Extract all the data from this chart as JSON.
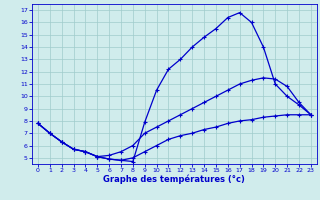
{
  "xlabel": "Graphe des températures (°c)",
  "xlim": [
    -0.5,
    23.5
  ],
  "ylim": [
    4.5,
    17.5
  ],
  "xticks": [
    0,
    1,
    2,
    3,
    4,
    5,
    6,
    7,
    8,
    9,
    10,
    11,
    12,
    13,
    14,
    15,
    16,
    17,
    18,
    19,
    20,
    21,
    22,
    23
  ],
  "yticks": [
    5,
    6,
    7,
    8,
    9,
    10,
    11,
    12,
    13,
    14,
    15,
    16,
    17
  ],
  "line_color": "#0000cc",
  "bg_color": "#d0ecec",
  "grid_color": "#a0cccc",
  "curve1_x": [
    0,
    1,
    2,
    3,
    4,
    5,
    6,
    7,
    8,
    9,
    10,
    11,
    12,
    13,
    14,
    15,
    16,
    17,
    18,
    19,
    20,
    21,
    22,
    23
  ],
  "curve1_y": [
    7.8,
    7.0,
    6.3,
    5.7,
    5.5,
    5.1,
    4.9,
    4.8,
    4.7,
    7.9,
    10.5,
    12.2,
    13.0,
    14.0,
    14.8,
    15.5,
    16.4,
    16.8,
    16.0,
    14.0,
    11.0,
    10.0,
    9.3,
    8.5
  ],
  "curve2_x": [
    0,
    1,
    2,
    3,
    4,
    5,
    6,
    7,
    8,
    9,
    10,
    11,
    12,
    13,
    14,
    15,
    16,
    17,
    18,
    19,
    20,
    21,
    22,
    23
  ],
  "curve2_y": [
    7.8,
    7.0,
    6.3,
    5.7,
    5.5,
    5.1,
    5.2,
    5.5,
    6.0,
    7.0,
    7.5,
    8.0,
    8.5,
    9.0,
    9.5,
    10.0,
    10.5,
    11.0,
    11.3,
    11.5,
    11.4,
    10.8,
    9.5,
    8.5
  ],
  "curve3_x": [
    0,
    1,
    2,
    3,
    4,
    5,
    6,
    7,
    8,
    9,
    10,
    11,
    12,
    13,
    14,
    15,
    16,
    17,
    18,
    19,
    20,
    21,
    22,
    23
  ],
  "curve3_y": [
    7.8,
    7.0,
    6.3,
    5.7,
    5.5,
    5.1,
    4.9,
    4.8,
    5.0,
    5.5,
    6.0,
    6.5,
    6.8,
    7.0,
    7.3,
    7.5,
    7.8,
    8.0,
    8.1,
    8.3,
    8.4,
    8.5,
    8.5,
    8.5
  ],
  "marker": "+",
  "markersize": 3,
  "linewidth": 0.9
}
